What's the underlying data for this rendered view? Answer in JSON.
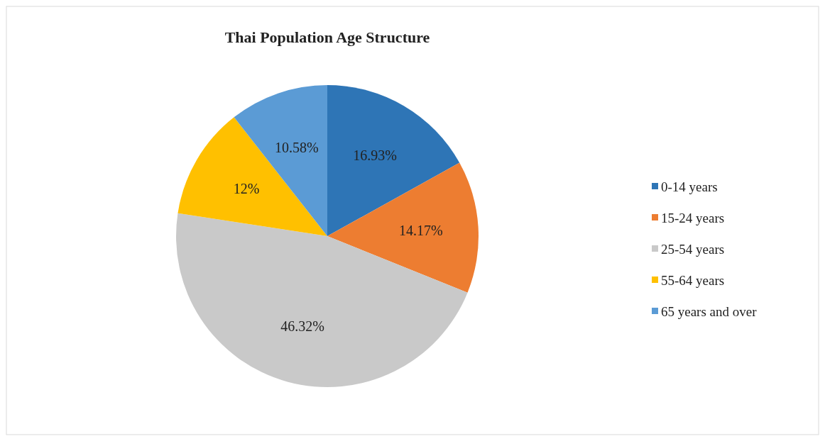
{
  "chart_data": {
    "type": "pie",
    "title": "Thai Population Age Structure",
    "categories": [
      "0-14 years",
      "15-24 years",
      "25-54 years",
      "55-64 years",
      "65 years and over"
    ],
    "values": [
      16.93,
      14.17,
      46.32,
      12,
      10.58
    ],
    "colors": [
      "#2e75b6",
      "#ed7d31",
      "#c9c9c9",
      "#ffc000",
      "#5b9bd5"
    ],
    "value_labels": [
      "16.93%",
      "14.17%",
      "46.32%",
      "12%",
      "10.58%"
    ],
    "legend": "right"
  }
}
